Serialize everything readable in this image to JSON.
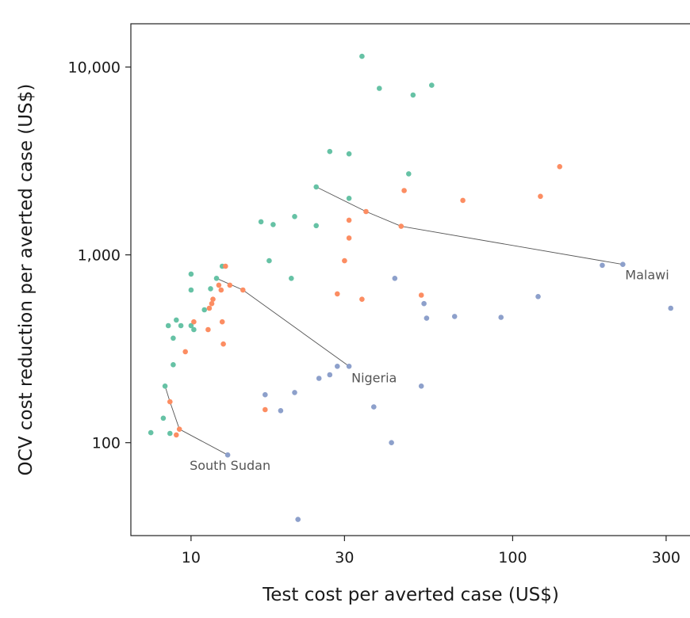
{
  "chart_data": {
    "type": "scatter",
    "title": "",
    "xlabel": "Test cost per averted case (US$)",
    "ylabel": "OCV cost reduction per averted case (US$)",
    "xscale": "log",
    "yscale": "log",
    "xlim": [
      6.5,
      360
    ],
    "ylim": [
      32,
      17000
    ],
    "x_ticks": [
      10,
      30,
      100,
      300
    ],
    "x_tick_labels": [
      "10",
      "30",
      "100",
      "300"
    ],
    "y_ticks": [
      100,
      1000,
      10000
    ],
    "y_tick_labels": [
      "100",
      "1,000",
      "10,000"
    ],
    "grid": false,
    "legend": "none",
    "colors": {
      "green": "#66c2a5",
      "orange": "#fc8d62",
      "blue": "#8da0cb",
      "line": "#555555",
      "frame": "#222222"
    },
    "series": [
      {
        "color": "green",
        "points": [
          [
            34,
            11400
          ],
          [
            38.5,
            7700
          ],
          [
            49,
            7100
          ],
          [
            56,
            8000
          ],
          [
            27,
            3550
          ],
          [
            31,
            3450
          ],
          [
            47.5,
            2700
          ],
          [
            24.5,
            2300
          ],
          [
            31,
            2000
          ],
          [
            16.5,
            1500
          ],
          [
            18,
            1450
          ],
          [
            21,
            1600
          ],
          [
            24.5,
            1430
          ],
          [
            17.5,
            930
          ],
          [
            20.5,
            750
          ],
          [
            12.5,
            870
          ],
          [
            10,
            790
          ],
          [
            10,
            650
          ],
          [
            11.5,
            660
          ],
          [
            12,
            750
          ],
          [
            11,
            510
          ],
          [
            9,
            450
          ],
          [
            8.5,
            420
          ],
          [
            9.3,
            420
          ],
          [
            10,
            420
          ],
          [
            10.2,
            400
          ],
          [
            8.8,
            360
          ],
          [
            8.8,
            260
          ],
          [
            8.3,
            200
          ],
          [
            8.2,
            135
          ],
          [
            8.6,
            112
          ],
          [
            7.5,
            113
          ]
        ]
      },
      {
        "color": "orange",
        "points": [
          [
            140,
            2950
          ],
          [
            122,
            2050
          ],
          [
            70,
            1950
          ],
          [
            46,
            2200
          ],
          [
            35,
            1700
          ],
          [
            31,
            1530
          ],
          [
            45,
            1420
          ],
          [
            31,
            1230
          ],
          [
            30,
            930
          ],
          [
            12.8,
            870
          ],
          [
            12.2,
            690
          ],
          [
            13.2,
            690
          ],
          [
            12.4,
            650
          ],
          [
            14.5,
            650
          ],
          [
            11.7,
            580
          ],
          [
            11.6,
            550
          ],
          [
            11.4,
            520
          ],
          [
            52,
            610
          ],
          [
            34,
            580
          ],
          [
            28.5,
            620
          ],
          [
            10.2,
            440
          ],
          [
            11.3,
            400
          ],
          [
            12.5,
            440
          ],
          [
            9.6,
            305
          ],
          [
            12.6,
            335
          ],
          [
            17,
            150
          ],
          [
            8.6,
            165
          ],
          [
            9.2,
            118
          ],
          [
            9.0,
            110
          ]
        ]
      },
      {
        "color": "blue",
        "points": [
          [
            220,
            890
          ],
          [
            190,
            880
          ],
          [
            310,
            520
          ],
          [
            43,
            750
          ],
          [
            53,
            550
          ],
          [
            54,
            460
          ],
          [
            66,
            470
          ],
          [
            92,
            465
          ],
          [
            120,
            600
          ],
          [
            31,
            255
          ],
          [
            28.5,
            255
          ],
          [
            27,
            230
          ],
          [
            25,
            220
          ],
          [
            52,
            200
          ],
          [
            37,
            155
          ],
          [
            21,
            185
          ],
          [
            17,
            180
          ],
          [
            19,
            148
          ],
          [
            42,
            100
          ],
          [
            13,
            86
          ],
          [
            21.5,
            39
          ]
        ]
      }
    ],
    "connecting_lines": [
      {
        "label": "Malawi",
        "points": [
          [
            24.5,
            2300
          ],
          [
            35,
            1700
          ],
          [
            45,
            1420
          ],
          [
            220,
            890
          ]
        ]
      },
      {
        "label": "Nigeria",
        "points": [
          [
            12,
            750
          ],
          [
            14.5,
            650
          ],
          [
            31,
            255
          ]
        ]
      },
      {
        "label": "South Sudan",
        "points": [
          [
            8.3,
            200
          ],
          [
            8.6,
            165
          ],
          [
            9.2,
            118
          ],
          [
            13,
            86
          ]
        ]
      }
    ]
  }
}
